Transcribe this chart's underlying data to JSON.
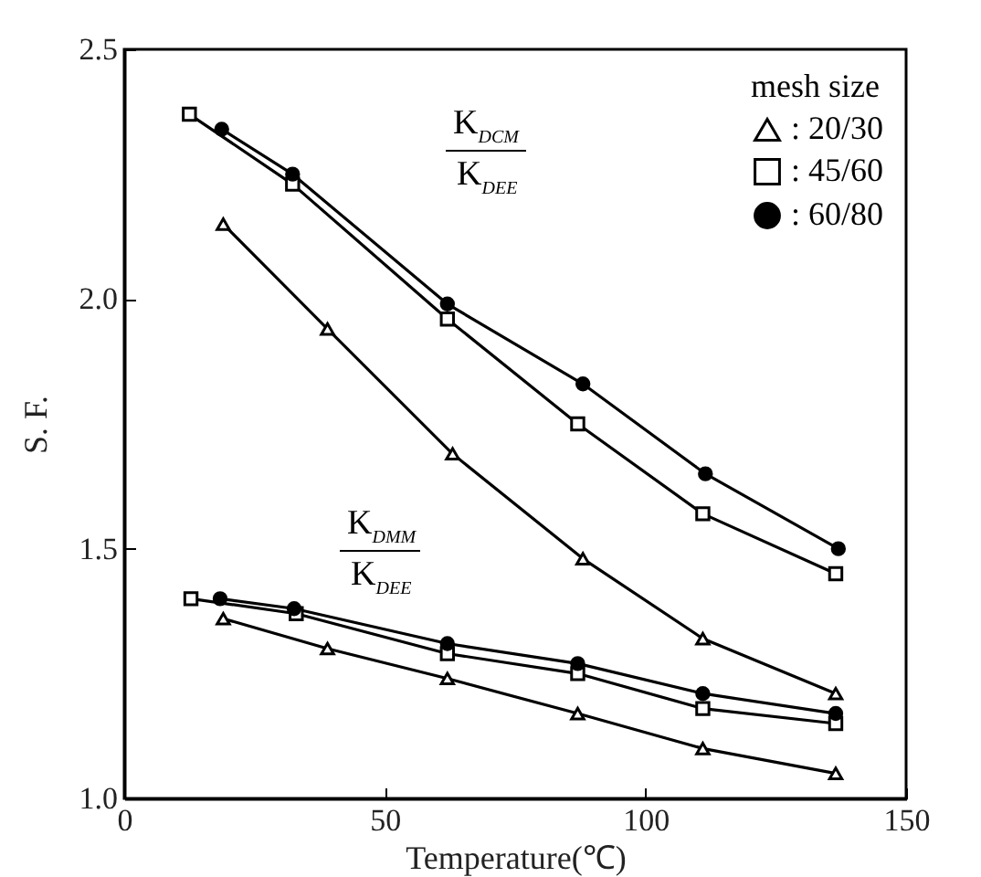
{
  "chart_data": {
    "type": "line",
    "xlabel": "Temperature(℃)",
    "ylabel": "S. F.",
    "legend_title": "mesh size",
    "legend": "top right",
    "grid": false,
    "xlim": [
      0,
      150
    ],
    "xticks": [
      0,
      50,
      100,
      150
    ],
    "ylim": [
      1.0,
      2.5
    ],
    "yticks": [
      {
        "value": 1.0,
        "label": "1.0"
      },
      {
        "value": 1.5,
        "label": "1.5"
      },
      {
        "value": 2.0,
        "label": "2.0"
      },
      {
        "value": 2.5,
        "label": "2.5"
      }
    ],
    "annotations": [
      "K$_{DCM}$",
      "K$_{DEE}$",
      "K$_{DMM}$",
      "K$_{DEE}$"
    ],
    "series": [
      {
        "name": ": 20/30",
        "color": "#000000",
        "marker": "triangle",
        "x": [
          19,
          39,
          63,
          88,
          111,
          136.5
        ],
        "values": [
          2.15,
          1.94,
          1.69,
          1.48,
          1.32,
          1.21
        ]
      },
      {
        "name": ": 45/60",
        "color": "#000000",
        "marker": "square",
        "x": [
          12.5,
          32.3,
          62,
          87,
          111,
          136.5
        ],
        "values": [
          2.37,
          2.23,
          1.96,
          1.75,
          1.57,
          1.45
        ]
      },
      {
        "name": ": 60/80",
        "color": "#000000",
        "marker": "circle",
        "x": [
          18.7,
          32.3,
          62,
          88,
          111.5,
          137
        ],
        "values": [
          2.34,
          2.25,
          1.99,
          1.83,
          1.65,
          1.5
        ]
      },
      {
        "color": "#000000",
        "marker": "triangle",
        "x": [
          19,
          39,
          62,
          87,
          111,
          136.5
        ],
        "values": [
          1.36,
          1.3,
          1.24,
          1.17,
          1.1,
          1.05
        ]
      },
      {
        "color": "#000000",
        "marker": "square",
        "x": [
          12.8,
          33,
          62,
          87,
          111,
          136.5
        ],
        "values": [
          1.4,
          1.37,
          1.29,
          1.25,
          1.18,
          1.15
        ]
      },
      {
        "color": "#000000",
        "marker": "circle",
        "x": [
          18.4,
          32.6,
          62,
          87,
          111,
          136.5
        ],
        "values": [
          1.4,
          1.38,
          1.31,
          1.27,
          1.21,
          1.17
        ]
      }
    ]
  }
}
